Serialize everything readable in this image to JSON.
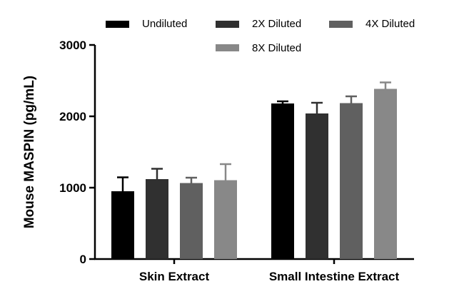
{
  "chart_data": {
    "type": "bar",
    "title": "",
    "xlabel": "",
    "ylabel": "Mouse MASPIN (pg/mL)",
    "ylim": [
      0,
      3000
    ],
    "yticks": [
      0,
      1000,
      2000,
      3000
    ],
    "ytick_labels": [
      "0",
      "1000",
      "2000",
      "3000"
    ],
    "categories": [
      "Skin Extract",
      "Small Intestine Extract"
    ],
    "series": [
      {
        "name": "Undiluted",
        "color": "#000000",
        "values": [
          950,
          2180
        ],
        "errors": [
          195,
          30
        ]
      },
      {
        "name": "2X Diluted",
        "color": "#303030",
        "values": [
          1120,
          2040
        ],
        "errors": [
          145,
          150
        ]
      },
      {
        "name": "4X Diluted",
        "color": "#606060",
        "values": [
          1065,
          2185
        ],
        "errors": [
          75,
          95
        ]
      },
      {
        "name": "8X Diluted",
        "color": "#888888",
        "values": [
          1105,
          2385
        ],
        "errors": [
          225,
          90
        ]
      }
    ],
    "grid": false,
    "legend": "top"
  }
}
